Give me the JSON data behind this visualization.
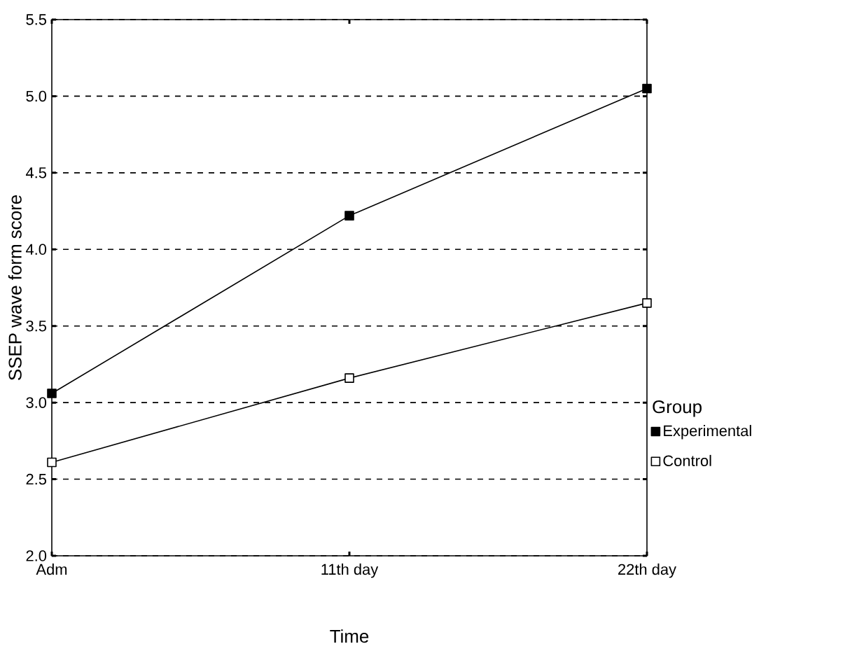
{
  "chart_data": {
    "type": "line",
    "xlabel": "Time",
    "ylabel": "SSEP wave form score",
    "legend_title": "Group",
    "categories": [
      "Adm",
      "11th day",
      "22th day"
    ],
    "series": [
      {
        "name": "Experimental",
        "color": "#000000",
        "values": [
          3.06,
          4.22,
          5.05
        ]
      },
      {
        "name": "Control",
        "color": "#000000",
        "values": [
          2.61,
          3.16,
          3.65
        ]
      }
    ],
    "ylim": [
      2.0,
      5.5
    ],
    "yticks": [
      {
        "value": 2.0,
        "label": "2.0"
      },
      {
        "value": 2.5,
        "label": "2.5"
      },
      {
        "value": 3.0,
        "label": "3.0"
      },
      {
        "value": 3.5,
        "label": "3.5"
      },
      {
        "value": 4.0,
        "label": "4.0"
      },
      {
        "value": 4.5,
        "label": "4.5"
      },
      {
        "value": 5.0,
        "label": "5.0"
      },
      {
        "value": 5.5,
        "label": "5.5"
      }
    ],
    "grid": "y",
    "legend": "right",
    "marker": "square",
    "line_style": "solid"
  }
}
